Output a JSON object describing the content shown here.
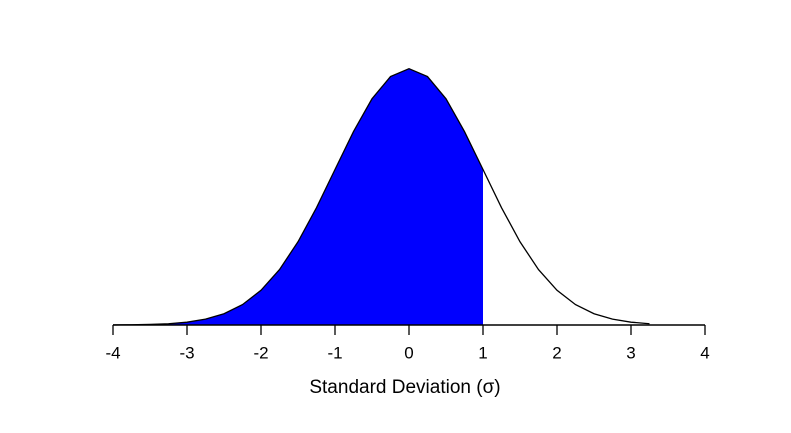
{
  "chart_data": {
    "type": "area",
    "x_label": "Standard Deviation (σ)",
    "x": [
      -4,
      -3.75,
      -3.5,
      -3.25,
      -3,
      -2.75,
      -2.5,
      -2.25,
      -2,
      -1.75,
      -1.5,
      -1.25,
      -1,
      -0.75,
      -0.5,
      -0.25,
      0,
      0.25,
      0.5,
      0.75,
      1,
      1.25,
      1.5,
      1.75,
      2,
      2.25,
      2.5,
      2.75,
      3,
      3.25
    ],
    "values": [
      0.0001,
      0.0004,
      0.0009,
      0.002,
      0.0044,
      0.0091,
      0.0175,
      0.0317,
      0.054,
      0.0863,
      0.1295,
      0.1826,
      0.242,
      0.3011,
      0.3521,
      0.3867,
      0.3989,
      0.3867,
      0.3521,
      0.3011,
      0.242,
      0.1826,
      0.1295,
      0.0863,
      0.054,
      0.0317,
      0.0175,
      0.0091,
      0.0044,
      0.002
    ],
    "shaded_range": [
      -4,
      1
    ],
    "color": "#0000ff",
    "line_color": "#000000",
    "xlim": [
      -4,
      4
    ],
    "xticks": [
      -4,
      -3,
      -2,
      -1,
      0,
      1,
      2,
      3,
      4
    ],
    "ylim": [
      0,
      0.4
    ]
  }
}
